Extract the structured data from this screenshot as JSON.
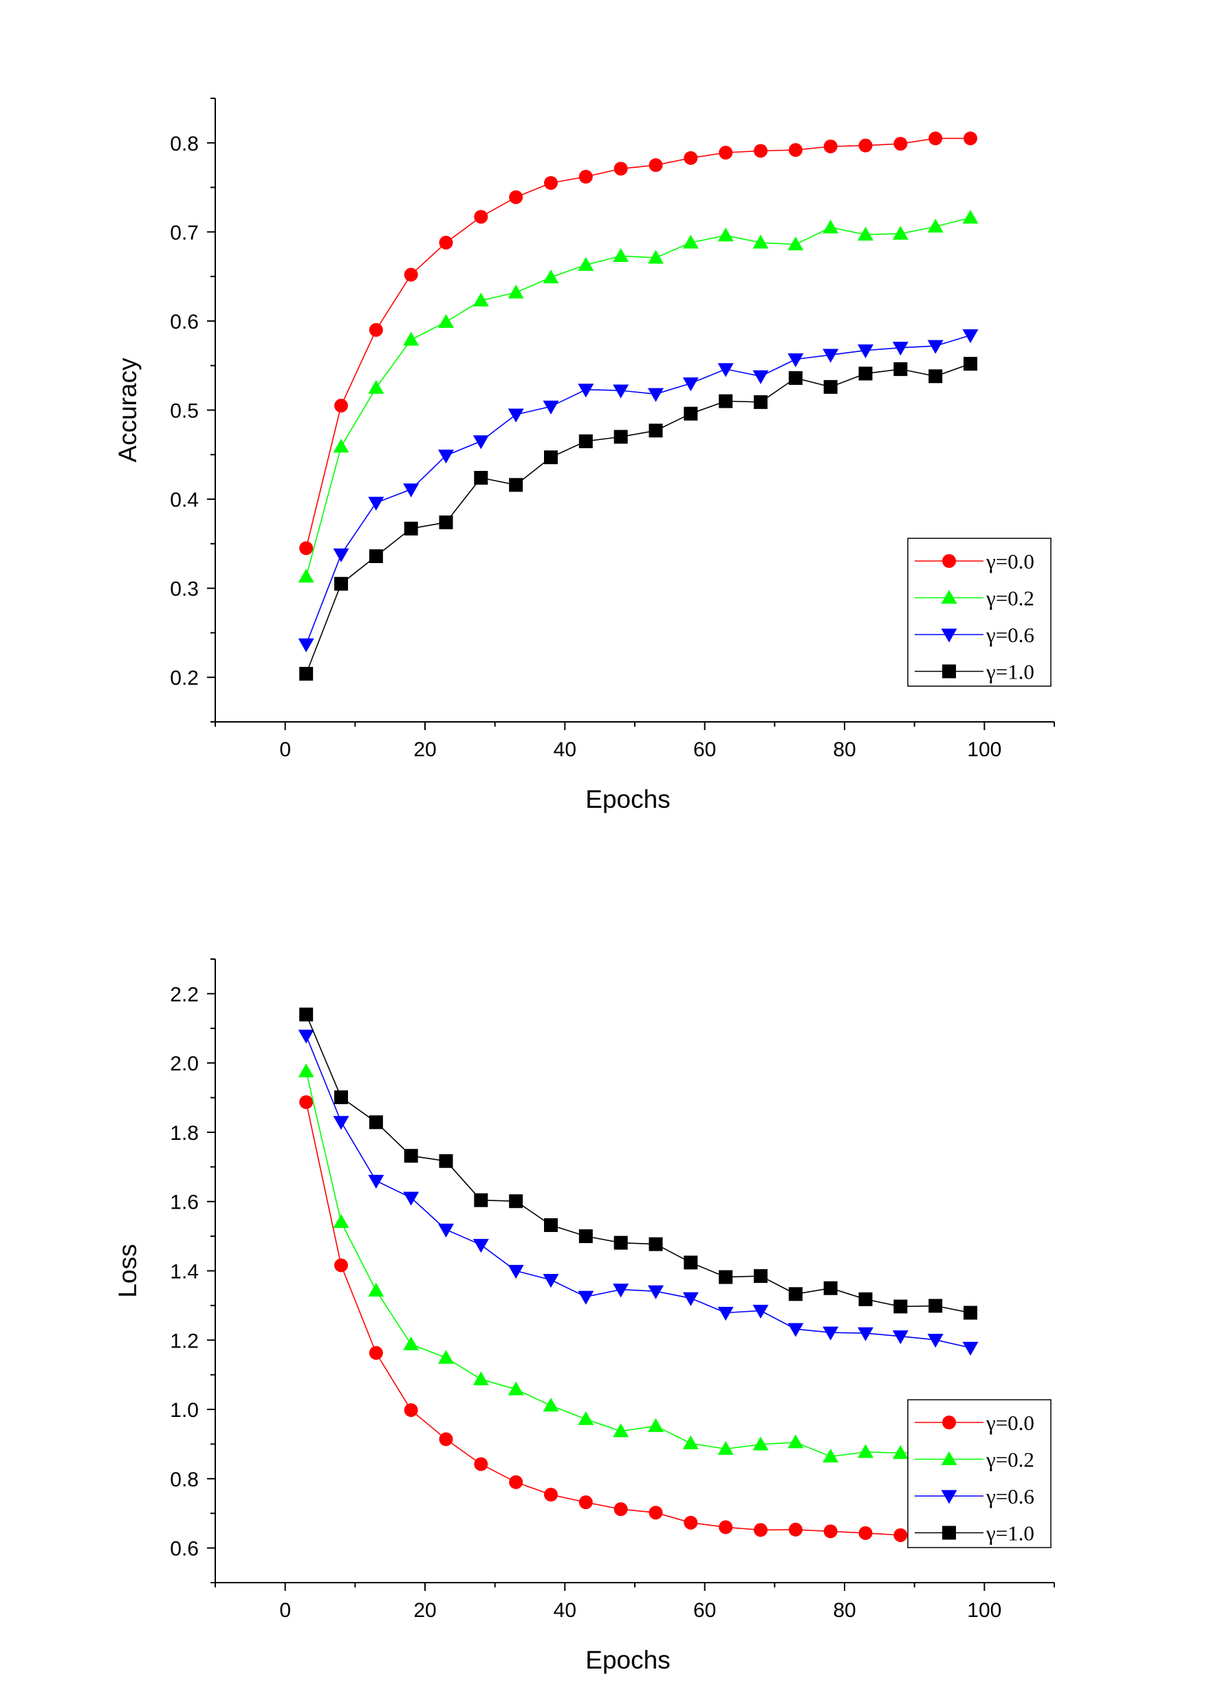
{
  "chart_data": [
    {
      "type": "line",
      "xlabel": "Epochs",
      "ylabel": "Accuracy",
      "xlim": [
        -10,
        110
      ],
      "ylim": [
        0.15,
        0.85
      ],
      "xticks": [
        0,
        20,
        40,
        60,
        80,
        100
      ],
      "yticks": [
        0.2,
        0.3,
        0.4,
        0.5,
        0.6,
        0.7,
        0.8
      ],
      "xtick_labels": [
        "0",
        "20",
        "40",
        "60",
        "80",
        "100"
      ],
      "ytick_labels": [
        "0.2",
        "0.3",
        "0.4",
        "0.5",
        "0.6",
        "0.7",
        "0.8"
      ],
      "grid": false,
      "legend_position": "bottom-right",
      "x": [
        3,
        8,
        13,
        18,
        23,
        28,
        33,
        38,
        43,
        48,
        53,
        58,
        63,
        68,
        73,
        78,
        83,
        88,
        93,
        98
      ],
      "series": [
        {
          "name": "γ=0.0",
          "color": "#ff0000",
          "marker": "circle",
          "values": [
            0.345,
            0.505,
            0.59,
            0.652,
            0.688,
            0.717,
            0.739,
            0.755,
            0.762,
            0.771,
            0.775,
            0.783,
            0.789,
            0.791,
            0.792,
            0.796,
            0.797,
            0.799,
            0.805,
            0.805
          ]
        },
        {
          "name": "γ=0.2",
          "color": "#00ff00",
          "marker": "triangle-up",
          "values": [
            0.313,
            0.459,
            0.525,
            0.579,
            0.599,
            0.623,
            0.632,
            0.649,
            0.663,
            0.673,
            0.671,
            0.688,
            0.696,
            0.688,
            0.686,
            0.705,
            0.697,
            0.698,
            0.706,
            0.716
          ]
        },
        {
          "name": "γ=0.6",
          "color": "#0000ff",
          "marker": "triangle-down",
          "values": [
            0.237,
            0.338,
            0.396,
            0.411,
            0.449,
            0.465,
            0.495,
            0.504,
            0.523,
            0.522,
            0.518,
            0.53,
            0.546,
            0.538,
            0.557,
            0.562,
            0.567,
            0.57,
            0.572,
            0.584
          ]
        },
        {
          "name": "γ=1.0",
          "color": "#000000",
          "marker": "square",
          "values": [
            0.204,
            0.305,
            0.336,
            0.367,
            0.374,
            0.424,
            0.416,
            0.447,
            0.465,
            0.47,
            0.477,
            0.496,
            0.51,
            0.509,
            0.536,
            0.526,
            0.541,
            0.546,
            0.538,
            0.552
          ]
        }
      ]
    },
    {
      "type": "line",
      "xlabel": "Epochs",
      "ylabel": "Loss",
      "xlim": [
        -10,
        110
      ],
      "ylim": [
        0.5,
        2.3
      ],
      "xticks": [
        0,
        20,
        40,
        60,
        80,
        100
      ],
      "yticks": [
        0.6,
        0.8,
        1.0,
        1.2,
        1.4,
        1.6,
        1.8,
        2.0,
        2.2
      ],
      "xtick_labels": [
        "0",
        "20",
        "40",
        "60",
        "80",
        "100"
      ],
      "ytick_labels": [
        "0.6",
        "0.8",
        "1.0",
        "1.2",
        "1.4",
        "1.6",
        "1.8",
        "2.0",
        "2.2"
      ],
      "grid": false,
      "legend_position": "bottom-right",
      "x": [
        3,
        8,
        13,
        18,
        23,
        28,
        33,
        38,
        43,
        48,
        53,
        58,
        63,
        68,
        73,
        78,
        83,
        88,
        93,
        98
      ],
      "series": [
        {
          "name": "γ=0.0",
          "color": "#ff0000",
          "marker": "circle",
          "values": [
            1.887,
            1.416,
            1.163,
            0.998,
            0.914,
            0.842,
            0.79,
            0.754,
            0.732,
            0.712,
            0.702,
            0.673,
            0.66,
            0.652,
            0.653,
            0.648,
            0.643,
            0.637,
            0.633,
            0.634
          ]
        },
        {
          "name": "γ=0.2",
          "color": "#00ff00",
          "marker": "triangle-up",
          "values": [
            1.976,
            1.541,
            1.343,
            1.188,
            1.149,
            1.087,
            1.058,
            1.011,
            0.972,
            0.937,
            0.952,
            0.902,
            0.886,
            0.899,
            0.905,
            0.864,
            0.877,
            0.874,
            0.876,
            0.866
          ]
        },
        {
          "name": "γ=0.6",
          "color": "#0000ff",
          "marker": "triangle-down",
          "values": [
            2.079,
            1.83,
            1.66,
            1.611,
            1.519,
            1.475,
            1.4,
            1.374,
            1.325,
            1.346,
            1.341,
            1.321,
            1.279,
            1.285,
            1.232,
            1.222,
            1.22,
            1.211,
            1.201,
            1.178
          ]
        },
        {
          "name": "γ=1.0",
          "color": "#000000",
          "marker": "square",
          "values": [
            2.14,
            1.901,
            1.829,
            1.732,
            1.717,
            1.604,
            1.601,
            1.532,
            1.5,
            1.481,
            1.477,
            1.424,
            1.382,
            1.385,
            1.333,
            1.35,
            1.318,
            1.297,
            1.299,
            1.279
          ]
        }
      ]
    }
  ]
}
